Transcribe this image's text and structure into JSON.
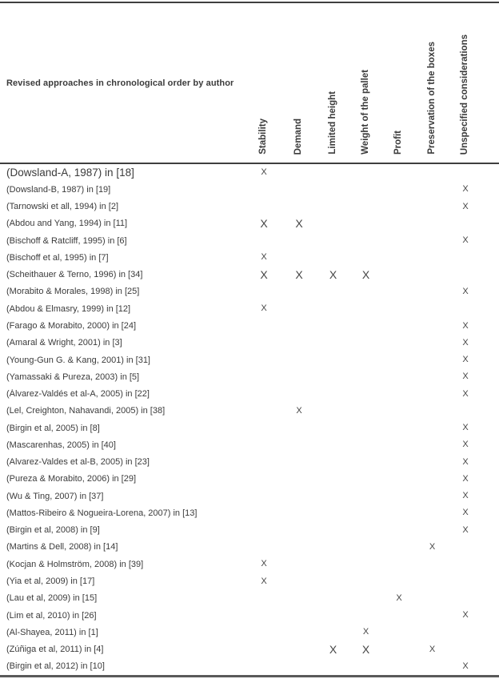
{
  "colors": {
    "background": "#ffffff",
    "text": "#3b3b3b",
    "mark": "#454545",
    "border_dark": "#3f3f3f",
    "border_bottom": "#5a5a5a"
  },
  "table": {
    "header_label": "Revised approaches in chronological order by author",
    "mark_symbol": "X",
    "columns": [
      "Stability",
      "Demand",
      "Limited height",
      "Weight of the pallet",
      "Profit",
      "Preservation of the boxes",
      "Unspecified considerations"
    ],
    "rows": [
      {
        "author": "(Dowsland-A, 1987) in [18]",
        "emphasis": true,
        "marks": [
          {
            "col": 0,
            "large": false
          }
        ]
      },
      {
        "author": "(Dowsland-B, 1987) in [19]",
        "emphasis": false,
        "marks": [
          {
            "col": 6,
            "large": false
          }
        ]
      },
      {
        "author": "(Tarnowski et all, 1994) in [2]",
        "emphasis": false,
        "marks": [
          {
            "col": 6,
            "large": false
          }
        ]
      },
      {
        "author": "(Abdou and Yang, 1994) in [11]",
        "emphasis": false,
        "marks": [
          {
            "col": 0,
            "large": true
          },
          {
            "col": 1,
            "large": true
          }
        ]
      },
      {
        "author": "(Bischoff & Ratcliff, 1995) in [6]",
        "emphasis": false,
        "marks": [
          {
            "col": 6,
            "large": false
          }
        ]
      },
      {
        "author": "(Bischoff et al, 1995) in [7]",
        "emphasis": false,
        "marks": [
          {
            "col": 0,
            "large": false
          }
        ]
      },
      {
        "author": "(Scheithauer & Terno, 1996) in [34]",
        "emphasis": false,
        "marks": [
          {
            "col": 0,
            "large": true
          },
          {
            "col": 1,
            "large": true
          },
          {
            "col": 2,
            "large": true
          },
          {
            "col": 3,
            "large": true
          }
        ]
      },
      {
        "author": "(Morabito & Morales, 1998) in [25]",
        "emphasis": false,
        "marks": [
          {
            "col": 6,
            "large": false
          }
        ]
      },
      {
        "author": "(Abdou & Elmasry, 1999) in [12]",
        "emphasis": false,
        "marks": [
          {
            "col": 0,
            "large": false
          }
        ]
      },
      {
        "author": "(Farago & Morabito, 2000) in [24]",
        "emphasis": false,
        "marks": [
          {
            "col": 6,
            "large": false
          }
        ]
      },
      {
        "author": "(Amaral & Wright, 2001) in [3]",
        "emphasis": false,
        "marks": [
          {
            "col": 6,
            "large": false
          }
        ]
      },
      {
        "author": "(Young-Gun G. & Kang, 2001) in [31]",
        "emphasis": false,
        "marks": [
          {
            "col": 6,
            "large": false
          }
        ]
      },
      {
        "author": "(Yamassaki & Pureza, 2003) in [5]",
        "emphasis": false,
        "marks": [
          {
            "col": 6,
            "large": false
          }
        ]
      },
      {
        "author": "(Álvarez-Valdés et al-A, 2005) in [22]",
        "emphasis": false,
        "marks": [
          {
            "col": 6,
            "large": false
          }
        ]
      },
      {
        "author": "(Lel, Creighton, Nahavandi, 2005) in [38]",
        "emphasis": false,
        "marks": [
          {
            "col": 1,
            "large": false
          }
        ]
      },
      {
        "author": "(Birgin et al, 2005) in [8]",
        "emphasis": false,
        "marks": [
          {
            "col": 6,
            "large": false
          }
        ]
      },
      {
        "author": "(Mascarenhas, 2005) in [40]",
        "emphasis": false,
        "marks": [
          {
            "col": 6,
            "large": false
          }
        ]
      },
      {
        "author": "(Alvarez-Valdes et al-B, 2005) in [23]",
        "emphasis": false,
        "marks": [
          {
            "col": 6,
            "large": false
          }
        ]
      },
      {
        "author": "(Pureza & Morabito, 2006) in [29]",
        "emphasis": false,
        "marks": [
          {
            "col": 6,
            "large": false
          }
        ]
      },
      {
        "author": "(Wu & Ting, 2007) in [37]",
        "emphasis": false,
        "marks": [
          {
            "col": 6,
            "large": false
          }
        ]
      },
      {
        "author": "(Mattos-Ribeiro & Nogueira-Lorena, 2007) in [13]",
        "emphasis": false,
        "marks": [
          {
            "col": 6,
            "large": false
          }
        ]
      },
      {
        "author": "(Birgin et al, 2008) in [9]",
        "emphasis": false,
        "marks": [
          {
            "col": 6,
            "large": false
          }
        ]
      },
      {
        "author": "(Martins & Dell, 2008) in [14]",
        "emphasis": false,
        "marks": [
          {
            "col": 5,
            "large": false
          }
        ]
      },
      {
        "author": "(Kocjan & Holmström, 2008) in [39]",
        "emphasis": false,
        "marks": [
          {
            "col": 0,
            "large": false
          }
        ]
      },
      {
        "author": "(Yia et al, 2009) in [17]",
        "emphasis": false,
        "marks": [
          {
            "col": 0,
            "large": false
          }
        ]
      },
      {
        "author": "(Lau et al, 2009) in [15]",
        "emphasis": false,
        "marks": [
          {
            "col": 4,
            "large": false
          }
        ]
      },
      {
        "author": "(Lim et al, 2010) in [26]",
        "emphasis": false,
        "marks": [
          {
            "col": 6,
            "large": false
          }
        ]
      },
      {
        "author": "(Al-Shayea, 2011) in [1]",
        "emphasis": false,
        "marks": [
          {
            "col": 3,
            "large": false
          }
        ]
      },
      {
        "author": "(Zúñiga et al, 2011) in [4]",
        "emphasis": false,
        "marks": [
          {
            "col": 2,
            "large": true
          },
          {
            "col": 3,
            "large": true
          },
          {
            "col": 5,
            "large": false
          }
        ]
      },
      {
        "author": "(Birgin et al, 2012) in [10]",
        "emphasis": false,
        "marks": [
          {
            "col": 6,
            "large": false
          }
        ]
      }
    ]
  }
}
